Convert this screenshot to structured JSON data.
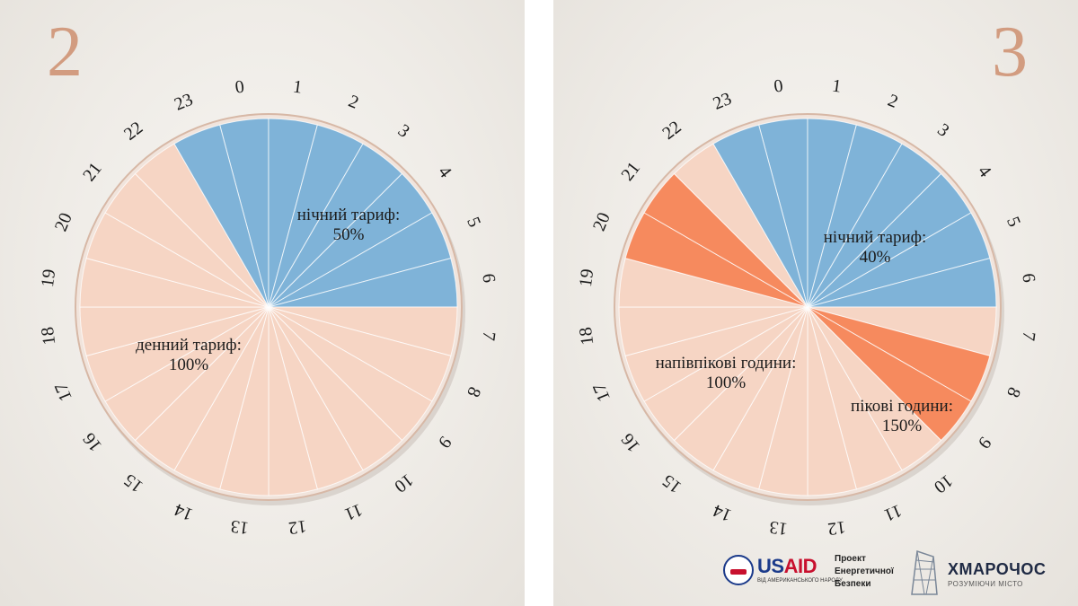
{
  "panels": [
    {
      "number": "2"
    },
    {
      "number": "3"
    }
  ],
  "chart_data": [
    {
      "type": "pie",
      "categories": [
        "0",
        "1",
        "2",
        "3",
        "4",
        "5",
        "6",
        "7",
        "8",
        "9",
        "10",
        "11",
        "12",
        "13",
        "14",
        "15",
        "16",
        "17",
        "18",
        "19",
        "20",
        "21",
        "22",
        "23"
      ],
      "hour_tariffs": [
        "night",
        "night",
        "night",
        "night",
        "night",
        "night",
        "night",
        "day",
        "day",
        "day",
        "day",
        "day",
        "day",
        "day",
        "day",
        "day",
        "day",
        "day",
        "day",
        "day",
        "day",
        "day",
        "day",
        "night"
      ],
      "series": [
        {
          "label_line1": "нічний тариф:",
          "label_line2": "50%",
          "hours": 8,
          "tariff_percent": 50,
          "color": "#7fb3d8"
        },
        {
          "label_line1": "денний тариф:",
          "label_line2": "100%",
          "hours": 16,
          "tariff_percent": 100,
          "color": "#f6d5c4"
        }
      ]
    },
    {
      "type": "pie",
      "categories": [
        "0",
        "1",
        "2",
        "3",
        "4",
        "5",
        "6",
        "7",
        "8",
        "9",
        "10",
        "11",
        "12",
        "13",
        "14",
        "15",
        "16",
        "17",
        "18",
        "19",
        "20",
        "21",
        "22",
        "23"
      ],
      "hour_tariffs": [
        "night",
        "night",
        "night",
        "night",
        "night",
        "night",
        "night",
        "half",
        "peak",
        "peak",
        "half",
        "half",
        "half",
        "half",
        "half",
        "half",
        "half",
        "half",
        "half",
        "half",
        "peak",
        "peak",
        "half",
        "night"
      ],
      "series": [
        {
          "label_line1": "нічний тариф:",
          "label_line2": "40%",
          "hours": 8,
          "tariff_percent": 40,
          "color": "#7fb3d8"
        },
        {
          "label_line1": "напівпікові години:",
          "label_line2": "100%",
          "hours": 12,
          "tariff_percent": 100,
          "color": "#f6d5c4"
        },
        {
          "label_line1": "пікові години:",
          "label_line2": "150%",
          "hours": 4,
          "tariff_percent": 150,
          "color": "#f68a5e"
        }
      ]
    }
  ],
  "footer": {
    "usaid_us": "US",
    "usaid_aid": "AID",
    "usaid_sub": "ВІД АМЕРИКАНСЬКОГО НАРОДУ",
    "project_line1": "Проект",
    "project_line2": "Енергетичної",
    "project_line3": "Безпеки",
    "brand_name": "ХМАРОЧОС",
    "brand_sub": "РОЗУМІЮЧИ МІСТО"
  }
}
